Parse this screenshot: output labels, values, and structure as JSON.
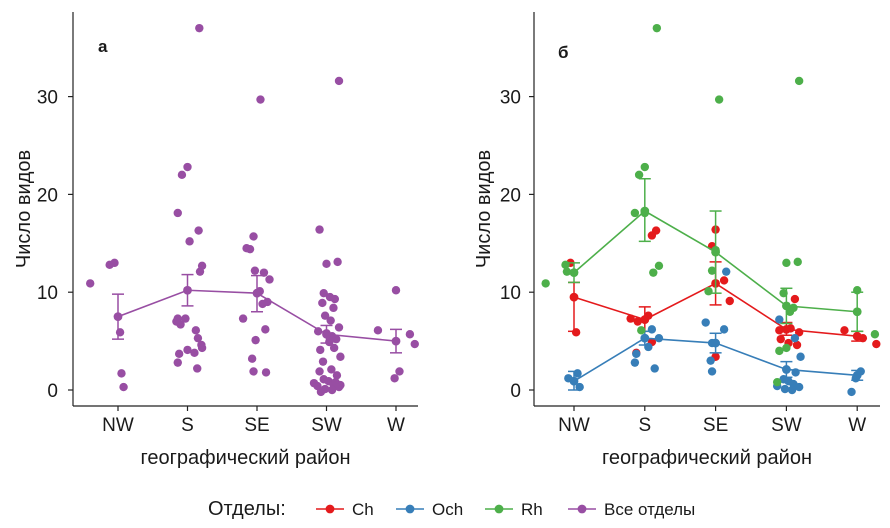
{
  "legend": {
    "title": "Отделы:",
    "items": [
      {
        "label": "Ch",
        "color": "#e41a1c"
      },
      {
        "label": "Och",
        "color": "#377eb8"
      },
      {
        "label": "Rh",
        "color": "#4daf4a"
      },
      {
        "label": "Все отделы",
        "color": "#984ea3"
      }
    ]
  },
  "chart_data": [
    {
      "type": "scatter",
      "panel_tag": "а",
      "xlabel": "географический район",
      "ylabel": "Число видов",
      "categories": [
        "NW",
        "S",
        "SE",
        "SW",
        "W"
      ],
      "yticks": [
        0,
        10,
        20,
        30
      ],
      "ylim": [
        -1.5,
        39
      ],
      "grid": false,
      "series": [
        {
          "name": "Все отделы",
          "color": "#984ea3",
          "mean": [
            7.5,
            10.2,
            9.9,
            5.7,
            5.0
          ],
          "err_low": [
            5.2,
            8.6,
            8.0,
            4.8,
            3.8
          ],
          "err_high": [
            9.8,
            11.8,
            11.7,
            6.6,
            6.2
          ],
          "points": [
            [
              -0.4,
              10.9
            ],
            [
              -0.12,
              12.8
            ],
            [
              -0.05,
              13.0
            ],
            [
              0.03,
              5.9
            ],
            [
              0.05,
              1.7
            ],
            [
              0.08,
              0.3
            ],
            [
              -0.14,
              18.1
            ],
            [
              -0.08,
              22.0
            ],
            [
              0.0,
              22.8
            ],
            [
              0.03,
              15.2
            ],
            [
              0.16,
              16.3
            ],
            [
              0.17,
              37.0
            ],
            [
              0.18,
              12.1
            ],
            [
              0.21,
              12.7
            ],
            [
              -0.14,
              7.3
            ],
            [
              -0.16,
              7.0
            ],
            [
              -0.1,
              6.7
            ],
            [
              -0.03,
              7.3
            ],
            [
              -0.12,
              3.7
            ],
            [
              -0.14,
              2.8
            ],
            [
              0.0,
              4.1
            ],
            [
              0.1,
              3.8
            ],
            [
              0.12,
              6.1
            ],
            [
              0.15,
              5.3
            ],
            [
              0.2,
              4.6
            ],
            [
              0.21,
              4.3
            ],
            [
              0.14,
              2.2
            ],
            [
              -0.1,
              14.4
            ],
            [
              -0.15,
              14.5
            ],
            [
              -0.05,
              15.7
            ],
            [
              -0.2,
              7.3
            ],
            [
              -0.03,
              12.2
            ],
            [
              0.1,
              12.0
            ],
            [
              0.18,
              11.3
            ],
            [
              0.04,
              10.1
            ],
            [
              0.08,
              8.8
            ],
            [
              0.15,
              9.0
            ],
            [
              0.12,
              6.2
            ],
            [
              -0.02,
              5.1
            ],
            [
              -0.07,
              3.2
            ],
            [
              -0.05,
              1.9
            ],
            [
              0.13,
              1.8
            ],
            [
              0.05,
              29.7
            ],
            [
              -0.1,
              16.4
            ],
            [
              0.0,
              12.9
            ],
            [
              0.16,
              13.1
            ],
            [
              0.18,
              31.6
            ],
            [
              -0.04,
              9.9
            ],
            [
              0.05,
              9.5
            ],
            [
              -0.06,
              8.9
            ],
            [
              0.12,
              9.3
            ],
            [
              0.1,
              8.4
            ],
            [
              -0.02,
              7.6
            ],
            [
              0.06,
              7.1
            ],
            [
              0.18,
              6.4
            ],
            [
              -0.12,
              6.0
            ],
            [
              0.0,
              5.8
            ],
            [
              0.08,
              5.5
            ],
            [
              0.14,
              5.2
            ],
            [
              0.04,
              4.9
            ],
            [
              -0.09,
              4.1
            ],
            [
              0.11,
              4.3
            ],
            [
              0.2,
              3.4
            ],
            [
              -0.05,
              2.9
            ],
            [
              0.07,
              2.1
            ],
            [
              -0.1,
              1.9
            ],
            [
              0.15,
              1.5
            ],
            [
              -0.04,
              1.1
            ],
            [
              0.03,
              0.9
            ],
            [
              0.1,
              0.6
            ],
            [
              -0.13,
              0.4
            ],
            [
              0.18,
              0.3
            ],
            [
              -0.02,
              0.1
            ],
            [
              0.08,
              0.0
            ],
            [
              -0.08,
              -0.2
            ],
            [
              0.13,
              0.8
            ],
            [
              0.2,
              0.5
            ],
            [
              -0.18,
              0.7
            ],
            [
              -0.26,
              6.1
            ],
            [
              0.0,
              10.2
            ],
            [
              0.2,
              5.7
            ],
            [
              0.27,
              4.7
            ],
            [
              -0.02,
              1.2
            ],
            [
              0.05,
              1.9
            ]
          ]
        }
      ]
    },
    {
      "type": "scatter",
      "panel_tag": "б",
      "xlabel": "географический район",
      "ylabel": "Число видов",
      "categories": [
        "NW",
        "S",
        "SE",
        "SW",
        "W"
      ],
      "yticks": [
        0,
        10,
        20,
        30
      ],
      "ylim": [
        -1.5,
        39
      ],
      "grid": false,
      "series": [
        {
          "name": "Ch",
          "color": "#e41a1c",
          "mean": [
            9.5,
            7.2,
            10.9,
            6.2,
            5.5
          ],
          "err_low": [
            6.0,
            6.0,
            8.7,
            5.6,
            5.0
          ],
          "err_high": [
            11.0,
            8.5,
            13.1,
            6.9,
            6.0
          ],
          "points": [
            [
              -0.05,
              13.0
            ],
            [
              0.03,
              5.9
            ],
            [
              -0.2,
              7.3
            ],
            [
              -0.1,
              7.0
            ],
            [
              0.05,
              7.6
            ],
            [
              0.1,
              4.9
            ],
            [
              0.16,
              16.3
            ],
            [
              -0.12,
              3.8
            ],
            [
              0.1,
              15.8
            ],
            [
              -0.05,
              14.7
            ],
            [
              0.12,
              11.2
            ],
            [
              0.2,
              9.1
            ],
            [
              0.0,
              3.4
            ],
            [
              0.0,
              16.4
            ],
            [
              -0.1,
              6.1
            ],
            [
              0.12,
              9.3
            ],
            [
              0.06,
              6.3
            ],
            [
              0.18,
              5.9
            ],
            [
              -0.08,
              5.2
            ],
            [
              0.03,
              4.8
            ],
            [
              0.15,
              4.6
            ],
            [
              -0.18,
              6.1
            ],
            [
              0.27,
              4.7
            ],
            [
              0.08,
              5.3
            ]
          ]
        },
        {
          "name": "Och",
          "color": "#377eb8",
          "mean": [
            0.9,
            5.3,
            4.8,
            2.1,
            1.5
          ],
          "err_low": [
            0.0,
            4.6,
            3.8,
            1.3,
            1.0
          ],
          "err_high": [
            1.9,
            6.0,
            5.8,
            2.9,
            2.0
          ],
          "points": [
            [
              0.05,
              1.7
            ],
            [
              0.08,
              0.3
            ],
            [
              -0.08,
              1.2
            ],
            [
              -0.12,
              3.7
            ],
            [
              -0.14,
              2.8
            ],
            [
              0.05,
              4.4
            ],
            [
              0.2,
              5.3
            ],
            [
              0.14,
              2.2
            ],
            [
              0.1,
              6.2
            ],
            [
              -0.14,
              6.9
            ],
            [
              0.15,
              12.1
            ],
            [
              -0.05,
              4.8
            ],
            [
              0.12,
              6.2
            ],
            [
              -0.07,
              3.0
            ],
            [
              -0.05,
              1.9
            ],
            [
              0.13,
              1.8
            ],
            [
              -0.1,
              7.2
            ],
            [
              0.12,
              5.3
            ],
            [
              0.2,
              3.4
            ],
            [
              -0.04,
              1.1
            ],
            [
              0.03,
              0.9
            ],
            [
              0.1,
              0.6
            ],
            [
              -0.13,
              0.4
            ],
            [
              0.18,
              0.3
            ],
            [
              -0.02,
              0.1
            ],
            [
              0.08,
              0.0
            ],
            [
              -0.08,
              -0.2
            ],
            [
              0.05,
              1.9
            ],
            [
              -0.02,
              1.2
            ]
          ]
        },
        {
          "name": "Rh",
          "color": "#4daf4a",
          "mean": [
            12.0,
            18.3,
            14.1,
            8.6,
            8.0
          ],
          "err_low": [
            11.0,
            15.2,
            9.9,
            6.8,
            6.0
          ],
          "err_high": [
            13.0,
            21.6,
            18.3,
            10.4,
            10.0
          ],
          "points": [
            [
              -0.4,
              10.9
            ],
            [
              -0.12,
              12.8
            ],
            [
              -0.1,
              12.1
            ],
            [
              -0.14,
              18.1
            ],
            [
              -0.08,
              22.0
            ],
            [
              0.0,
              22.8
            ],
            [
              0.17,
              37.0
            ],
            [
              0.12,
              12.0
            ],
            [
              0.2,
              12.7
            ],
            [
              0.0,
              18.1
            ],
            [
              -0.05,
              6.1
            ],
            [
              0.05,
              29.7
            ],
            [
              -0.05,
              12.2
            ],
            [
              0.0,
              14.3
            ],
            [
              -0.1,
              10.1
            ],
            [
              0.0,
              13.0
            ],
            [
              0.16,
              13.1
            ],
            [
              0.18,
              31.6
            ],
            [
              0.1,
              8.4
            ],
            [
              -0.04,
              9.9
            ],
            [
              0.05,
              8.0
            ],
            [
              -0.1,
              4.0
            ],
            [
              0.0,
              4.3
            ],
            [
              -0.13,
              0.8
            ],
            [
              0.0,
              10.2
            ],
            [
              0.25,
              5.7
            ]
          ]
        }
      ]
    }
  ]
}
